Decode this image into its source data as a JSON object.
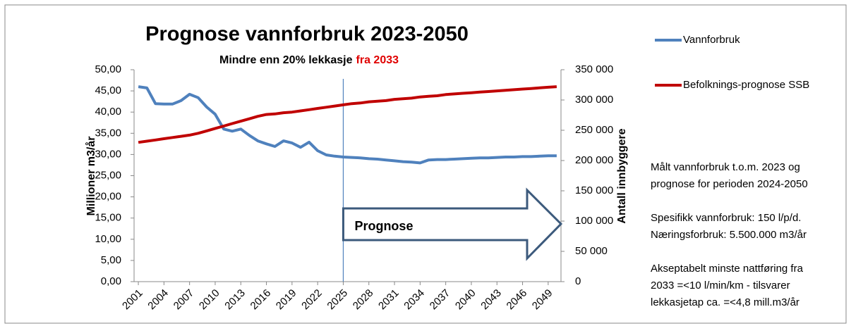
{
  "chart_data": {
    "type": "line",
    "title": "Prognose vannforbruk  2023-2050",
    "subtitle": "Mindre enn 20% lekkasje",
    "subtitle_highlight": "fra 2033",
    "subtitle_highlight_color": "#e00000",
    "y_label": "Millioner m3/år",
    "y2_label": "Antall innbyggere",
    "categories": [
      "2001",
      null,
      null,
      "2004",
      null,
      null,
      "2007",
      null,
      null,
      "2010",
      null,
      null,
      "2013",
      null,
      null,
      "2016",
      null,
      null,
      "2019",
      null,
      null,
      "2022",
      null,
      null,
      "2025",
      null,
      null,
      "2028",
      null,
      null,
      "2031",
      null,
      null,
      "2034",
      null,
      null,
      "2037",
      null,
      null,
      "2040",
      null,
      null,
      "2043",
      null,
      null,
      "2046",
      null,
      null,
      "2049",
      null
    ],
    "series": [
      {
        "name": "Vannforbruk",
        "color": "#4f81bd",
        "values": [
          46.0,
          45.7,
          42.0,
          41.9,
          41.9,
          42.7,
          44.2,
          43.4,
          41.2,
          39.5,
          36.0,
          35.5,
          36.0,
          34.5,
          33.2,
          32.5,
          31.9,
          33.2,
          32.7,
          31.7,
          32.9,
          30.9,
          29.9,
          29.6,
          29.4,
          29.3,
          29.2,
          29.0,
          28.9,
          28.7,
          28.5,
          28.3,
          28.2,
          28.0,
          28.7,
          28.8,
          28.8,
          28.9,
          29.0,
          29.1,
          29.2,
          29.2,
          29.3,
          29.4,
          29.4,
          29.5,
          29.5,
          29.6,
          29.7,
          29.7
        ]
      },
      {
        "name": "Befolknings-prognose SSB",
        "color": "#c00000",
        "axis": "y2",
        "values": [
          230000,
          232000,
          234000,
          236000,
          238000,
          240000,
          242000,
          245000,
          249000,
          253000,
          257000,
          261000,
          265000,
          269000,
          273000,
          276000,
          277000,
          279000,
          280000,
          282000,
          284000,
          286000,
          288000,
          290000,
          292000,
          294000,
          295000,
          297000,
          298000,
          299000,
          301000,
          302000,
          303000,
          305000,
          306000,
          307000,
          309000,
          310000,
          311000,
          312000,
          313000,
          314000,
          315000,
          316000,
          317000,
          318000,
          319000,
          320000,
          321000,
          322000
        ]
      }
    ],
    "ylim": [
      0,
      50
    ],
    "yticks": [
      {
        "value": 0,
        "label": "0,00"
      },
      {
        "value": 5,
        "label": "5,00"
      },
      {
        "value": 10,
        "label": "10,00"
      },
      {
        "value": 15,
        "label": "15,00"
      },
      {
        "value": 20,
        "label": "20,00"
      },
      {
        "value": 25,
        "label": "25,00"
      },
      {
        "value": 30,
        "label": "30,00"
      },
      {
        "value": 35,
        "label": "35,00"
      },
      {
        "value": 40,
        "label": "40,00"
      },
      {
        "value": 45,
        "label": "45,00"
      },
      {
        "value": 50,
        "label": "50,00"
      }
    ],
    "y2lim": [
      0,
      350000
    ],
    "y2ticks": [
      0,
      {
        "value": 50000,
        "label": "50 000"
      },
      {
        "value": 100000,
        "label": "100 000"
      },
      {
        "value": 150000,
        "label": "150 000"
      },
      {
        "value": 200000,
        "label": "200 000"
      },
      {
        "value": 250000,
        "label": "250 000"
      },
      {
        "value": 300000,
        "label": "300 000"
      },
      {
        "value": 350000,
        "label": "350 000"
      }
    ],
    "legend": "right",
    "forecast_start": "2025",
    "forecast_label": "Prognose",
    "notes": [
      "Målt vannforbruk t.o.m. 2023 og",
      "prognose for perioden 2024-2050",
      "Spesifikk vannforbruk: 150 l/p/d.",
      "Næringsforbruk: 5.500.000 m3/år",
      "Akseptabelt minste nattføring fra",
      "2033 =<10 l/min/km - tilsvarer",
      "lekkasjetap ca. =<4,8 mill.m3/år"
    ]
  }
}
